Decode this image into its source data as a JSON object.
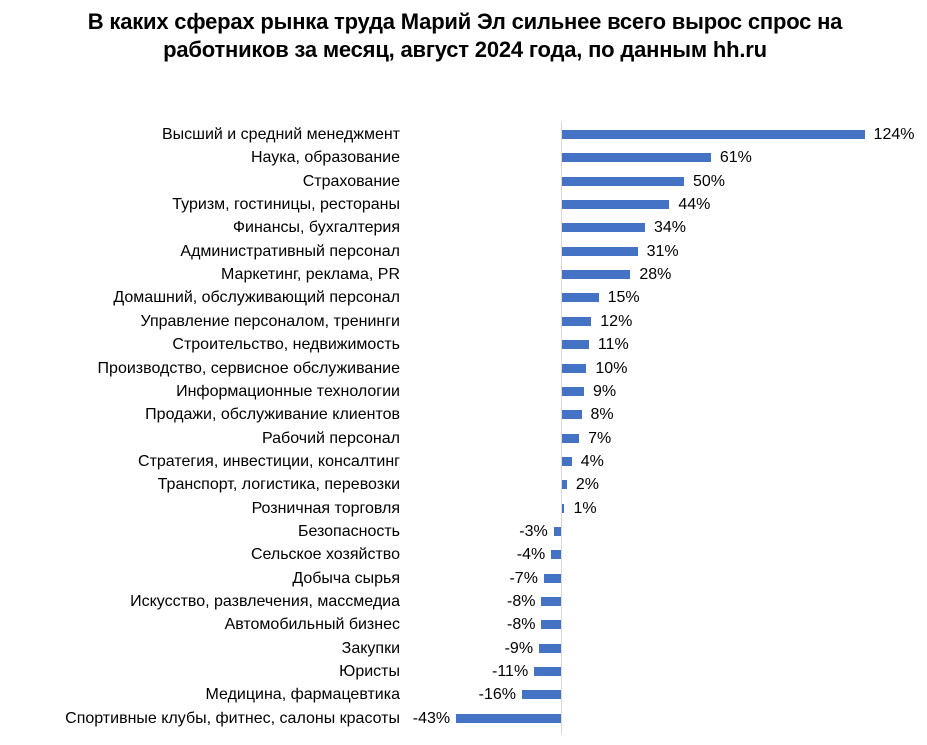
{
  "title": "В каких сферах рынка труда Марий Эл сильнее всего вырос спрос на работников за месяц, август 2024 года, по данным hh.ru",
  "colors": {
    "bar": "#4472c4",
    "axis": "#d9d9d9",
    "text": "#000000"
  },
  "chart_data": {
    "type": "bar",
    "orientation": "horizontal",
    "title": "В каких сферах рынка труда Марий Эл сильнее всего вырос спрос на работников за месяц, август 2024 года, по данным hh.ru",
    "xlabel": "",
    "ylabel": "",
    "grid": false,
    "legend": null,
    "unit": "%",
    "categories": [
      "Высший и средний менеджмент",
      "Наука, образование",
      "Страхование",
      "Туризм, гостиницы, рестораны",
      "Финансы, бухгалтерия",
      "Административный персонал",
      "Маркетинг, реклама, PR",
      "Домашний, обслуживающий персонал",
      "Управление персоналом, тренинги",
      "Строительство, недвижимость",
      "Производство, сервисное обслуживание",
      "Информационные технологии",
      "Продажи, обслуживание клиентов",
      "Рабочий персонал",
      "Стратегия, инвестиции, консалтинг",
      "Транспорт, логистика, перевозки",
      "Розничная торговля",
      "Безопасность",
      "Сельское хозяйство",
      "Добыча сырья",
      "Искусство, развлечения, массмедиа",
      "Автомобильный бизнес",
      "Закупки",
      "Юристы",
      "Медицина, фармацевтика",
      "Спортивные клубы, фитнес, салоны красоты"
    ],
    "values": [
      124,
      61,
      50,
      44,
      34,
      31,
      28,
      15,
      12,
      11,
      10,
      9,
      8,
      7,
      4,
      2,
      1,
      -3,
      -4,
      -7,
      -8,
      -8,
      -9,
      -11,
      -16,
      -43
    ],
    "labels": [
      "124%",
      "61%",
      "50%",
      "44%",
      "34%",
      "31%",
      "28%",
      "15%",
      "12%",
      "11%",
      "10%",
      "9%",
      "8%",
      "7%",
      "4%",
      "2%",
      "1%",
      "-3%",
      "-4%",
      "-7%",
      "-8%",
      "-8%",
      "-9%",
      "-11%",
      "-16%",
      "-43%"
    ]
  }
}
